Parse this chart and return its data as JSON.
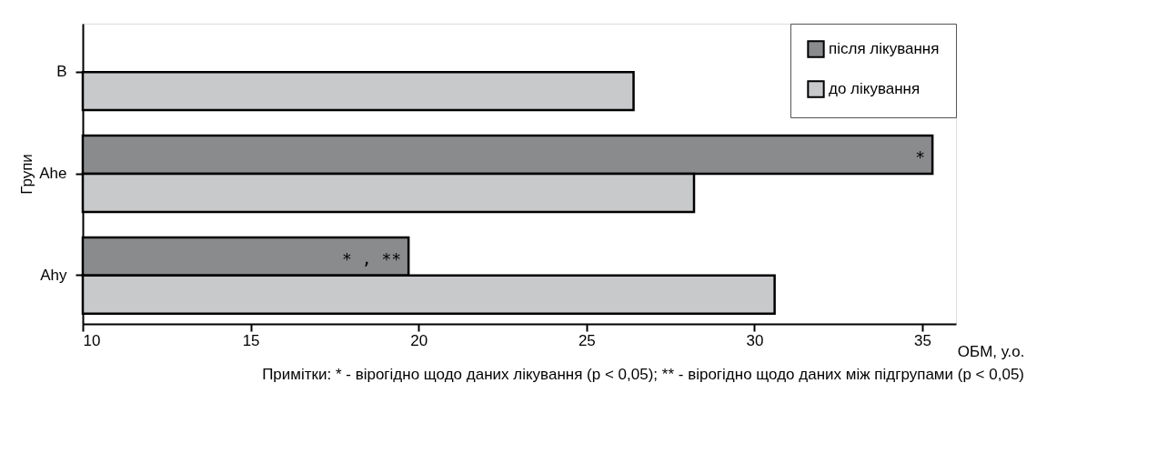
{
  "chart_data": {
    "type": "bar",
    "orientation": "horizontal",
    "xlabel": "ОБМ, у.о.",
    "ylabel": "Групи",
    "categories": [
      "B",
      "Ahe",
      "Ahy"
    ],
    "series": [
      {
        "name": "після лікування",
        "color": "#8a8b8d",
        "values": [
          null,
          35.3,
          19.7
        ]
      },
      {
        "name": "до лікування",
        "color": "#c8c9cb",
        "values": [
          26.4,
          28.2,
          30.6
        ]
      }
    ],
    "xlim": [
      10,
      36
    ],
    "xticks": [
      10,
      15,
      20,
      25,
      30,
      35
    ],
    "grid": false,
    "legend": "top right",
    "annotations": [
      {
        "text": "*",
        "x": 35.3,
        "y": "Ahe"
      },
      {
        "text": "* , **",
        "x": 19.7,
        "y": "Ahy"
      },
      "Примітки: * - вірогідно щодо даних лікування (p < 0,05); ** - вірогідно щодо даних між підгрупами (p < 0,05)"
    ]
  }
}
